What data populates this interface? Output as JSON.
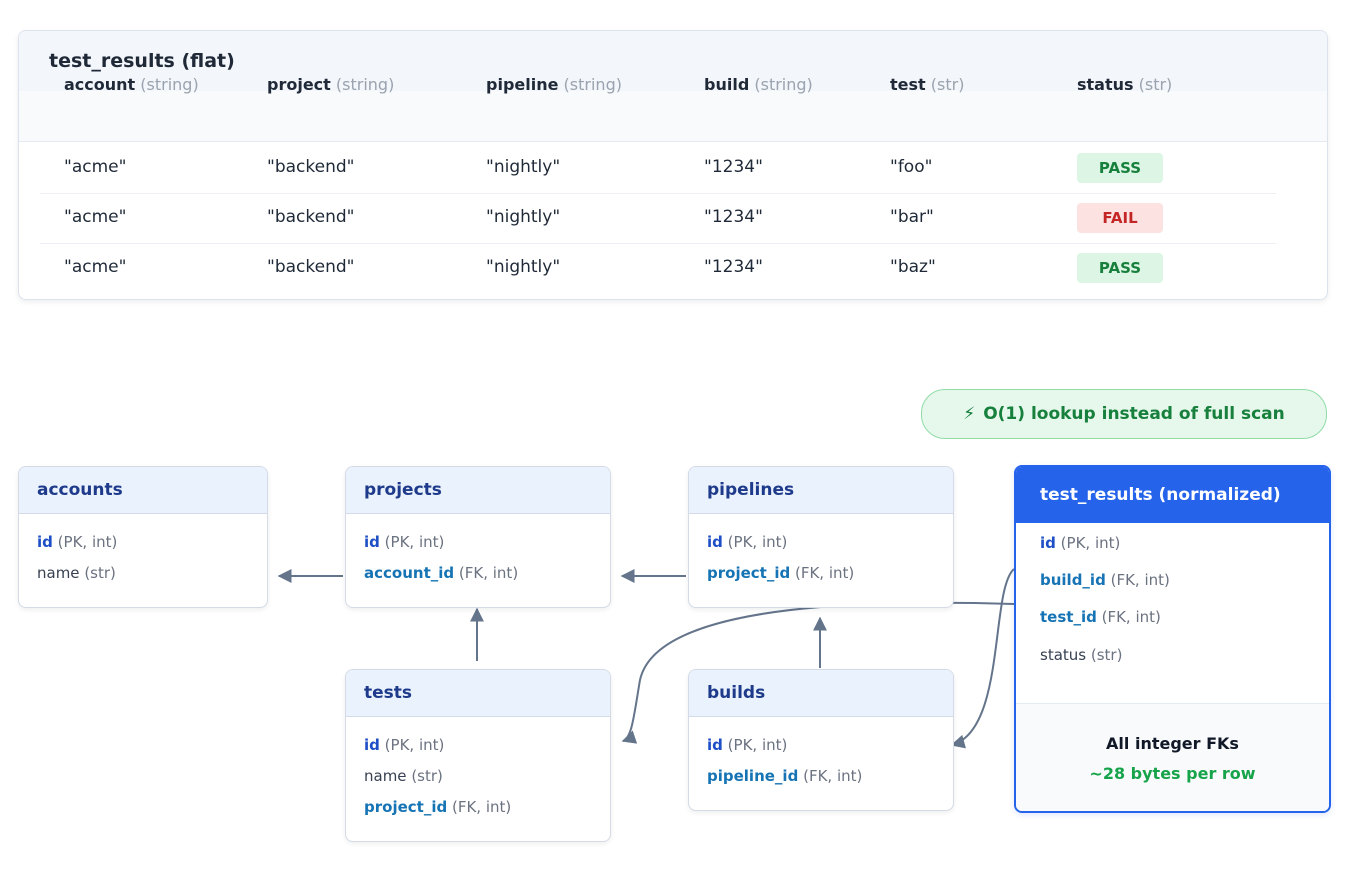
{
  "flat_table": {
    "title": "test_results (flat)",
    "columns": [
      {
        "name": "account",
        "type": "(string)"
      },
      {
        "name": "project",
        "type": "(string)"
      },
      {
        "name": "pipeline",
        "type": "(string)"
      },
      {
        "name": "build",
        "type": "(string)"
      },
      {
        "name": "test",
        "type": "(str)"
      },
      {
        "name": "status",
        "type": "(str)"
      }
    ],
    "rows": [
      {
        "account": "\"acme\"",
        "project": "\"backend\"",
        "pipeline": "\"nightly\"",
        "build": "\"1234\"",
        "test": "\"foo\"",
        "status": "PASS"
      },
      {
        "account": "\"acme\"",
        "project": "\"backend\"",
        "pipeline": "\"nightly\"",
        "build": "\"1234\"",
        "test": "\"bar\"",
        "status": "FAIL"
      },
      {
        "account": "\"acme\"",
        "project": "\"backend\"",
        "pipeline": "\"nightly\"",
        "build": "\"1234\"",
        "test": "\"baz\"",
        "status": "PASS"
      }
    ]
  },
  "lookup_badge": {
    "icon": "lightning-bolt-icon",
    "glyph": "⚡",
    "text": "O(1) lookup instead of full scan"
  },
  "tables": {
    "accounts": {
      "title": "accounts",
      "fields": [
        {
          "name": "id",
          "meta": "(PK, int)"
        },
        {
          "name": "name",
          "meta": "(str)"
        }
      ]
    },
    "projects": {
      "title": "projects",
      "fields": [
        {
          "name": "id",
          "meta": "(PK, int)"
        },
        {
          "name": "account_id",
          "meta": "(FK, int)"
        }
      ]
    },
    "pipelines": {
      "title": "pipelines",
      "fields": [
        {
          "name": "id",
          "meta": "(PK, int)"
        },
        {
          "name": "project_id",
          "meta": "(FK, int)"
        }
      ]
    },
    "tests": {
      "title": "tests",
      "fields": [
        {
          "name": "id",
          "meta": "(PK, int)"
        },
        {
          "name": "name",
          "meta": "(str)"
        },
        {
          "name": "project_id",
          "meta": "(FK, int)"
        }
      ]
    },
    "builds": {
      "title": "builds",
      "fields": [
        {
          "name": "id",
          "meta": "(PK, int)"
        },
        {
          "name": "pipeline_id",
          "meta": "(FK, int)"
        }
      ]
    },
    "test_results_normalized": {
      "title": "test_results (normalized)",
      "fields": [
        {
          "name": "id",
          "meta": "(PK, int)"
        },
        {
          "name": "build_id",
          "meta": "(FK, int)"
        },
        {
          "name": "test_id",
          "meta": "(FK, int)"
        },
        {
          "name": "status",
          "meta": "(str)"
        }
      ],
      "footer_line1": "All integer FKs",
      "footer_line2": "~28 bytes per row"
    }
  },
  "colors": {
    "pass_bg": "#dcf5e4",
    "pass_text": "#16803c",
    "fail_bg": "#fde2e2",
    "fail_text": "#c42626",
    "header_blue": "#2563eb",
    "pk_blue": "#1e4fc6",
    "fk_blue": "#1673b4",
    "arrow": "#64748b",
    "accent_green": "#16a34a"
  }
}
